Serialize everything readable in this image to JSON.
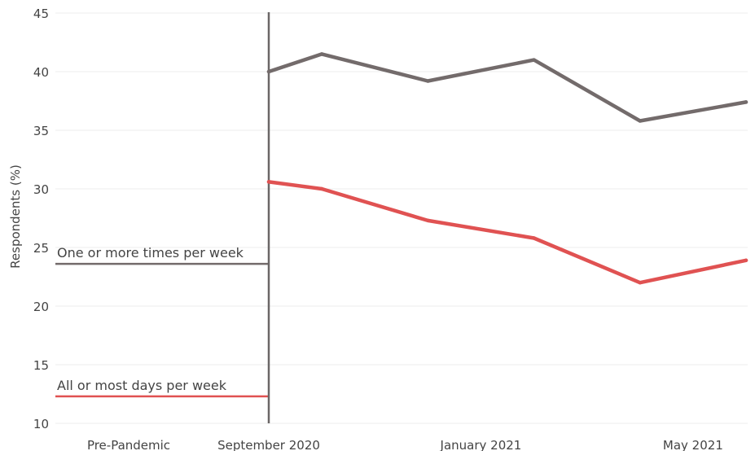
{
  "chart_data": {
    "type": "line",
    "ylabel": "Respondents (%)",
    "ylim": [
      10,
      45
    ],
    "y_ticks": [
      10,
      15,
      20,
      25,
      30,
      35,
      40,
      45
    ],
    "x_tick_labels": [
      "September 2020",
      "January 2021",
      "May 2021"
    ],
    "pre_pandemic_label": "Pre-Pandemic",
    "grid": "horizontal",
    "x": [
      "2020-09",
      "2020-10",
      "2020-12",
      "2021-02",
      "2021-04",
      "2021-06"
    ],
    "series": [
      {
        "name": "One or more times per week",
        "color": "#736b6b",
        "pre_pandemic": 23.6,
        "values": [
          40.0,
          41.5,
          39.2,
          41.0,
          35.8,
          37.4
        ]
      },
      {
        "name": "All or most days per week",
        "color": "#e05252",
        "pre_pandemic": 12.3,
        "values": [
          30.6,
          30.0,
          27.3,
          25.8,
          22.0,
          23.9
        ]
      }
    ]
  }
}
